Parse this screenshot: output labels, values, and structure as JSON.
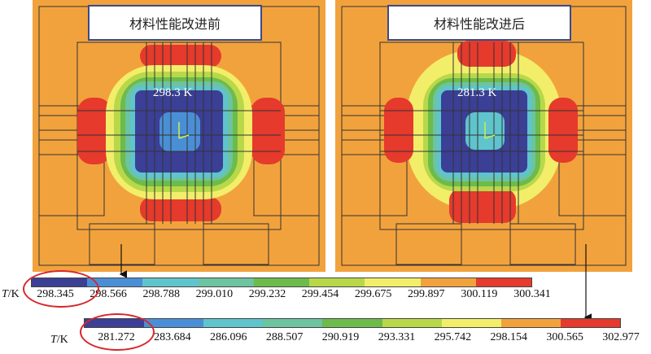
{
  "panels": [
    {
      "title": "材料性能改进前",
      "center_temp": "298.3 K"
    },
    {
      "title": "材料性能改进后",
      "center_temp": "281.3 K"
    }
  ],
  "scales": [
    {
      "unit_italic": "T",
      "unit_suffix": "/K",
      "ticks": [
        "298.345",
        "298.566",
        "298.788",
        "299.010",
        "299.232",
        "299.454",
        "299.675",
        "299.897",
        "300.119",
        "300.341"
      ]
    },
    {
      "unit_italic": "T",
      "unit_suffix": "/K",
      "ticks": [
        "281.272",
        "283.684",
        "286.096",
        "288.507",
        "290.919",
        "293.331",
        "295.742",
        "298.154",
        "300.565",
        "302.977"
      ]
    }
  ],
  "palette": [
    "#3b3f96",
    "#4a8fd6",
    "#5fc4cc",
    "#6cc4a0",
    "#6dbb4a",
    "#b8d84a",
    "#f2ee6a",
    "#f2a23c",
    "#e53a2c"
  ]
}
